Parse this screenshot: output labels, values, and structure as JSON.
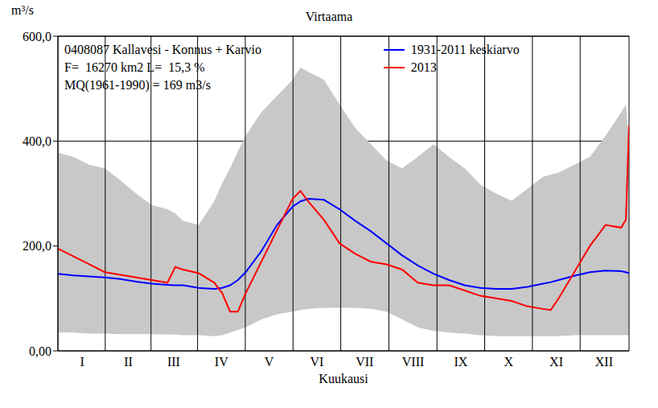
{
  "chart_data": {
    "type": "line",
    "title": "Virtaama",
    "y_label": "m³/s",
    "x_label": "Kuukausi",
    "annotations": [
      "0408087 Kallavesi - Konnus + Karvio",
      "F=  16270 km2 L=  15,3 %",
      "MQ(1961-1990) = 169 m3/s"
    ],
    "x": [
      0,
      10,
      20,
      30,
      40,
      50,
      60,
      70,
      75,
      80,
      90,
      100,
      105,
      110,
      115,
      120,
      130,
      140,
      150,
      155,
      160,
      170,
      180,
      190,
      200,
      210,
      220,
      230,
      240,
      250,
      260,
      270,
      280,
      290,
      300,
      310,
      315,
      320,
      330,
      340,
      350,
      360,
      363,
      365
    ],
    "xlim": [
      0,
      365
    ],
    "xticks": [
      {
        "value": 15.5,
        "label": "I"
      },
      {
        "value": 45,
        "label": "II"
      },
      {
        "value": 74,
        "label": "III"
      },
      {
        "value": 104.5,
        "label": "IV"
      },
      {
        "value": 135,
        "label": "V"
      },
      {
        "value": 165.5,
        "label": "VI"
      },
      {
        "value": 196,
        "label": "VII"
      },
      {
        "value": 227,
        "label": "VIII"
      },
      {
        "value": 257.5,
        "label": "IX"
      },
      {
        "value": 288,
        "label": "X"
      },
      {
        "value": 318.5,
        "label": "XI"
      },
      {
        "value": 349,
        "label": "XII"
      }
    ],
    "ylim": [
      0,
      600
    ],
    "yticks": [
      {
        "value": 0,
        "label": "0,00"
      },
      {
        "value": 200,
        "label": "200,0"
      },
      {
        "value": 400,
        "label": "400,0"
      },
      {
        "value": 600,
        "label": "600,0"
      }
    ],
    "grid": true,
    "legend": "upper right",
    "series": [
      {
        "type": "range",
        "color": "#c8c8c8",
        "lower": [
          35,
          35,
          33,
          33,
          32,
          32,
          32,
          31,
          31,
          30,
          30,
          28,
          30,
          35,
          40,
          45,
          60,
          70,
          75,
          78,
          80,
          82,
          82,
          82,
          80,
          75,
          60,
          45,
          38,
          35,
          33,
          30,
          28,
          28,
          28,
          28,
          28,
          28,
          30,
          30,
          30,
          30,
          30,
          30
        ],
        "upper": [
          378,
          370,
          355,
          348,
          325,
          300,
          278,
          270,
          262,
          248,
          240,
          286,
          320,
          348,
          380,
          410,
          455,
          486,
          517,
          540,
          532,
          517,
          470,
          425,
          394,
          363,
          348,
          370,
          394,
          370,
          348,
          317,
          300,
          286,
          309,
          332,
          336,
          340,
          355,
          370,
          410,
          455,
          470,
          400
        ]
      },
      {
        "name": "1931-2011 keskiarvo",
        "color": "#0000ff",
        "type": "line",
        "values": [
          147,
          144,
          142,
          140,
          137,
          132,
          128,
          126,
          125,
          125,
          120,
          118,
          120,
          125,
          135,
          150,
          190,
          240,
          275,
          285,
          290,
          288,
          270,
          248,
          228,
          205,
          182,
          163,
          147,
          135,
          125,
          120,
          118,
          118,
          122,
          128,
          131,
          135,
          143,
          150,
          153,
          152,
          150,
          148
        ]
      },
      {
        "name": "2013",
        "color": "#ff0000",
        "type": "line",
        "values": [
          195,
          180,
          165,
          150,
          145,
          140,
          135,
          130,
          160,
          155,
          148,
          130,
          110,
          75,
          75,
          110,
          170,
          230,
          290,
          305,
          285,
          250,
          205,
          185,
          170,
          165,
          155,
          130,
          125,
          125,
          115,
          105,
          100,
          95,
          85,
          80,
          78,
          100,
          150,
          200,
          240,
          235,
          250,
          430
        ]
      }
    ]
  }
}
